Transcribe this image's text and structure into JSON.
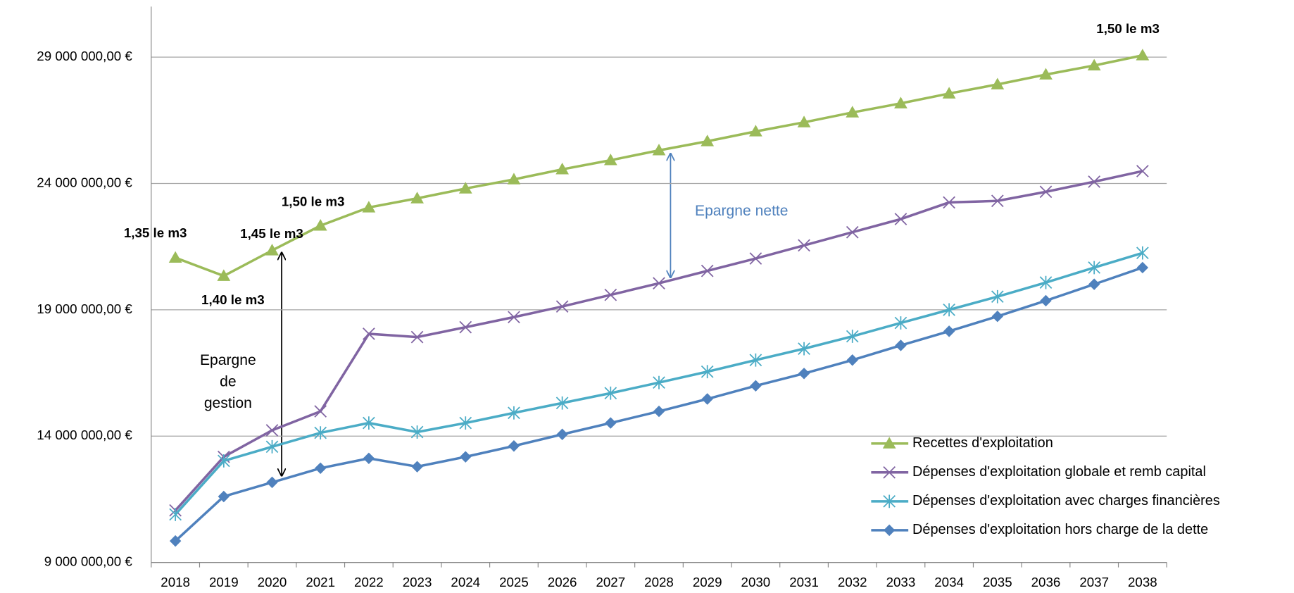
{
  "chart_data": {
    "type": "line",
    "categories": [
      "2018",
      "2019",
      "2020",
      "2021",
      "2022",
      "2023",
      "2024",
      "2025",
      "2026",
      "2027",
      "2028",
      "2029",
      "2030",
      "2031",
      "2032",
      "2033",
      "2034",
      "2035",
      "2036",
      "2037",
      "2038"
    ],
    "ylim": [
      9000000,
      31000000
    ],
    "yticks": [
      {
        "value": 9000000,
        "label": "9 000 000,00 €"
      },
      {
        "value": 14000000,
        "label": "14 000 000,00 €"
      },
      {
        "value": 19000000,
        "label": "19 000 000,00 €"
      },
      {
        "value": 24000000,
        "label": "24 000 000,00 €"
      },
      {
        "value": 29000000,
        "label": "29 000 000,00 €"
      }
    ],
    "grid": true,
    "legend": "lower right",
    "series": [
      {
        "name": "Recettes d'exploitation",
        "color": "#9bbb59",
        "marker": "triangle",
        "values": [
          21060000,
          20340000,
          21350000,
          22330000,
          23050000,
          23410000,
          23800000,
          24160000,
          24560000,
          24920000,
          25310000,
          25670000,
          26060000,
          26420000,
          26810000,
          27170000,
          27560000,
          27920000,
          28310000,
          28670000,
          29070000
        ]
      },
      {
        "name": "Dépenses d'exploitation globale et remb capital",
        "color": "#8064a2",
        "marker": "x",
        "values": [
          11060000,
          13180000,
          14230000,
          14980000,
          18050000,
          17920000,
          18310000,
          18710000,
          19130000,
          19590000,
          20050000,
          20540000,
          21030000,
          21550000,
          22070000,
          22590000,
          23250000,
          23310000,
          23670000,
          24070000,
          24490000
        ]
      },
      {
        "name": "Dépenses d'exploitation avec charges financières",
        "color": "#4bacc6",
        "marker": "star",
        "values": [
          10900000,
          13020000,
          13580000,
          14130000,
          14520000,
          14160000,
          14520000,
          14920000,
          15310000,
          15700000,
          16120000,
          16550000,
          17010000,
          17460000,
          17950000,
          18480000,
          19000000,
          19520000,
          20080000,
          20670000,
          21250000
        ]
      },
      {
        "name": "Dépenses d'exploitation hors charge de la dette",
        "color": "#4f81bd",
        "marker": "diamond",
        "values": [
          9850000,
          11610000,
          12170000,
          12730000,
          13120000,
          12790000,
          13180000,
          13610000,
          14070000,
          14520000,
          14980000,
          15470000,
          15990000,
          16480000,
          17010000,
          17590000,
          18150000,
          18740000,
          19360000,
          20010000,
          20670000
        ]
      }
    ],
    "annotations": [
      "1,35 le m3",
      "1,40 le m3",
      "1,45 le m3",
      "1,50 le m3",
      "1,50 le m3",
      "Epargne nette"
    ],
    "gestion_label": [
      "Epargne",
      "de",
      "gestion"
    ]
  }
}
